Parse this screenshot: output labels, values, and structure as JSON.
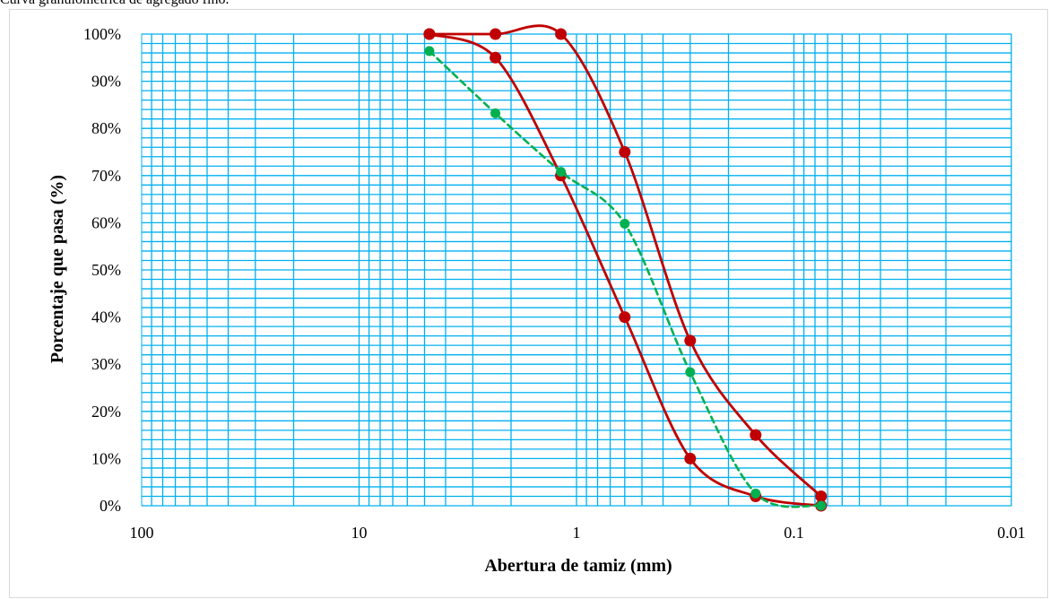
{
  "caption": "Curva granulométrica de agregado fino.",
  "chart_data": {
    "type": "line",
    "title": "",
    "xlabel": "Abertura de tamiz (mm)",
    "ylabel": "Porcentaje que pasa (%)",
    "x_scale": "log",
    "x_reversed": true,
    "xlim": [
      100,
      0.01
    ],
    "ylim": [
      0,
      100
    ],
    "x_ticks": [
      {
        "value": 100,
        "label": "100"
      },
      {
        "value": 10,
        "label": "10"
      },
      {
        "value": 1,
        "label": "1"
      },
      {
        "value": 0.1,
        "label": "0.1"
      },
      {
        "value": 0.01,
        "label": "0.01"
      }
    ],
    "y_ticks": [
      {
        "value": 0,
        "label": "0%"
      },
      {
        "value": 10,
        "label": "10%"
      },
      {
        "value": 20,
        "label": "20%"
      },
      {
        "value": 30,
        "label": "30%"
      },
      {
        "value": 40,
        "label": "40%"
      },
      {
        "value": 50,
        "label": "50%"
      },
      {
        "value": 60,
        "label": "60%"
      },
      {
        "value": 70,
        "label": "70%"
      },
      {
        "value": 80,
        "label": "80%"
      },
      {
        "value": 90,
        "label": "90%"
      },
      {
        "value": 100,
        "label": "100%"
      }
    ],
    "grid": true,
    "grid_color": "#00b0f0",
    "series": [
      {
        "color": "#c00000",
        "style": "solid",
        "marker": "circle",
        "x": [
          4.75,
          2.36,
          1.18,
          0.6,
          0.3,
          0.15,
          0.075
        ],
        "y": [
          100,
          95,
          70,
          40,
          10,
          2,
          0
        ]
      },
      {
        "color": "#c00000",
        "style": "solid",
        "marker": "circle",
        "x": [
          4.75,
          2.36,
          1.18,
          0.6,
          0.3,
          0.15,
          0.075
        ],
        "y": [
          100,
          100,
          100,
          75,
          35,
          15,
          2
        ]
      },
      {
        "color": "#00b050",
        "style": "dashed",
        "marker": "circle",
        "x": [
          4.75,
          2.36,
          1.18,
          0.6,
          0.3,
          0.15,
          0.075
        ],
        "y": [
          96.4,
          83.2,
          70.8,
          59.8,
          28.3,
          2.6,
          0
        ]
      }
    ]
  }
}
